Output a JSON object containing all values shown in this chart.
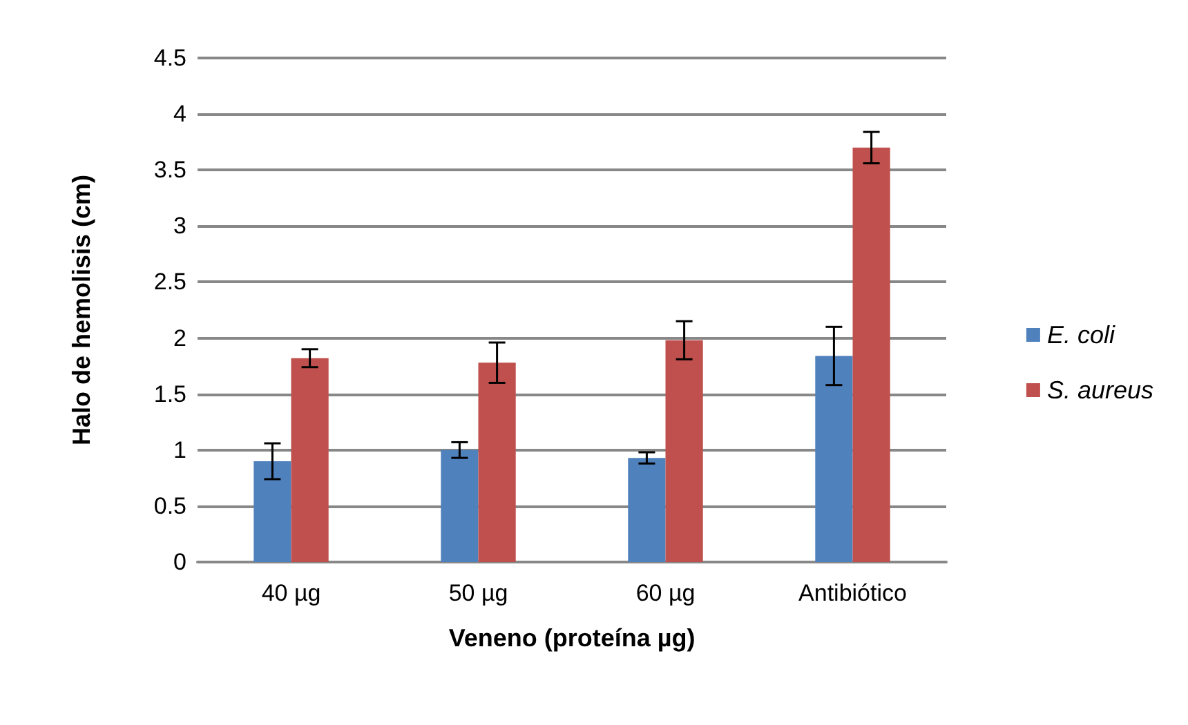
{
  "chart_data": {
    "type": "bar",
    "xlabel": "Veneno (proteína µg)",
    "ylabel": "Halo de hemolisis (cm)",
    "categories": [
      "40 µg",
      "50 µg",
      "60 µg",
      "Antibiótico"
    ],
    "series": [
      {
        "name": "E. coli",
        "color": "#4f81bd",
        "values": [
          0.9,
          1.0,
          0.93,
          1.84
        ],
        "errors": [
          0.16,
          0.07,
          0.05,
          0.26
        ]
      },
      {
        "name": "S. aureus",
        "color": "#c0504d",
        "values": [
          1.82,
          1.78,
          1.98,
          3.7
        ],
        "errors": [
          0.08,
          0.18,
          0.17,
          0.14
        ]
      }
    ],
    "ylim": [
      0,
      4.5
    ],
    "yticks": [
      0,
      0.5,
      1,
      1.5,
      2,
      2.5,
      3,
      3.5,
      4,
      4.5
    ],
    "grid": "y",
    "legend": "right"
  }
}
